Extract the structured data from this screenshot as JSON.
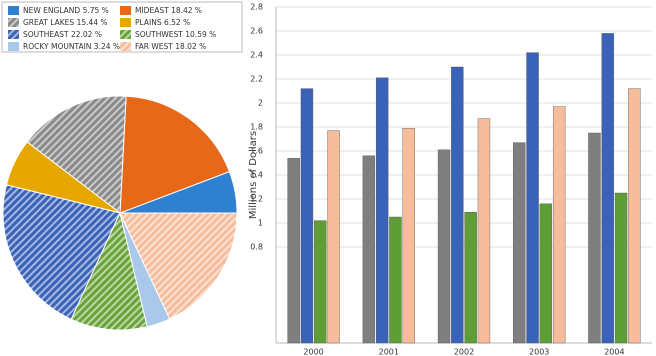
{
  "chart_data": [
    {
      "type": "pie",
      "categories": [
        "NEW ENGLAND",
        "MIDEAST",
        "GREAT LAKES",
        "PLAINS",
        "SOUTHEAST",
        "SOUTHWEST",
        "ROCKY MOUNTAIN",
        "FAR WEST"
      ],
      "values": [
        5.75,
        18.42,
        15.44,
        6.52,
        22.02,
        10.59,
        3.24,
        18.02
      ],
      "value_labels": [
        "5.75 %",
        "18.42 %",
        "15.44 %",
        "6.52 %",
        "22.02 %",
        "10.59 %",
        "3.24 %",
        "18.02 %"
      ],
      "colors": [
        "#2f80d0",
        "#e8681a",
        "#8a8a8a",
        "#e6a800",
        "#3a62b8",
        "#6aa33a",
        "#aac8ea",
        "#f6bc9c"
      ],
      "hatch": [
        false,
        false,
        true,
        false,
        true,
        true,
        false,
        true
      ],
      "legend": "top-left"
    },
    {
      "type": "bar",
      "categories": [
        "2000",
        "2001",
        "2002",
        "2003",
        "2004"
      ],
      "ylabel": "Millions of Dollars",
      "ylim": [
        0,
        2.8
      ],
      "yticks": [
        0.8,
        1,
        1.2,
        1.4,
        1.6,
        1.8,
        2,
        2.2,
        2.4,
        2.6,
        2.8
      ],
      "grid": true,
      "series": [
        {
          "color": "#7f7f7f",
          "values": [
            1.54,
            1.56,
            1.61,
            1.67,
            1.75
          ]
        },
        {
          "color": "#3a62b8",
          "values": [
            2.12,
            2.21,
            2.3,
            2.42,
            2.58
          ]
        },
        {
          "color": "#5f9e36",
          "values": [
            1.02,
            1.05,
            1.09,
            1.16,
            1.25
          ]
        },
        {
          "color": "#f6bc9c",
          "values": [
            1.77,
            1.79,
            1.87,
            1.97,
            2.12
          ]
        }
      ]
    }
  ]
}
